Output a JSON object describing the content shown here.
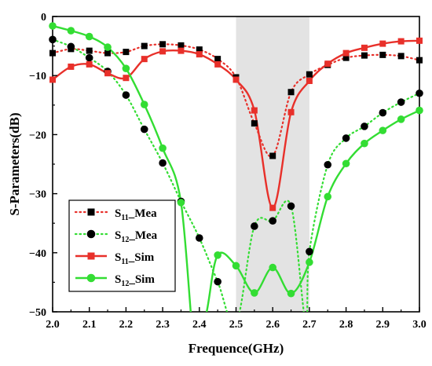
{
  "chart_data": {
    "type": "line",
    "xlabel": "Frequence(GHz)",
    "ylabel": "S-Parameters(dB)",
    "xlim": [
      2.0,
      3.0
    ],
    "ylim": [
      -50,
      0
    ],
    "xticks": [
      "2.0",
      "2.1",
      "2.2",
      "2.3",
      "2.4",
      "2.5",
      "2.6",
      "2.7",
      "2.8",
      "2.9",
      "3.0"
    ],
    "yticks": [
      "0",
      "−10",
      "−20",
      "−30",
      "−40",
      "−50"
    ],
    "highlight_band": [
      2.5,
      2.7
    ],
    "legend_placement": "lower-left",
    "series": [
      {
        "name": "S11_Mea",
        "legend_main": "S",
        "legend_sub": "11",
        "legend_suffix": "_Mea",
        "color": "#000000",
        "line_color": "#e8302a",
        "line_style": "dotted",
        "marker": "square",
        "marker_color": "#000000",
        "x": [
          2.0,
          2.05,
          2.1,
          2.15,
          2.2,
          2.25,
          2.3,
          2.35,
          2.4,
          2.45,
          2.5,
          2.55,
          2.6,
          2.65,
          2.7,
          2.75,
          2.8,
          2.85,
          2.9,
          2.95,
          3.0
        ],
        "y": [
          -6.2,
          -5.5,
          -5.8,
          -6.2,
          -6.0,
          -5.0,
          -4.7,
          -4.9,
          -5.6,
          -7.2,
          -10.3,
          -18.1,
          -23.6,
          -12.8,
          -9.8,
          -8.2,
          -7.0,
          -6.6,
          -6.5,
          -6.7,
          -7.4
        ]
      },
      {
        "name": "S12_Mea",
        "legend_main": "S",
        "legend_sub": "12",
        "legend_suffix": "_Mea",
        "color": "#000000",
        "line_color": "#33dd33",
        "line_style": "dotted",
        "marker": "circle",
        "marker_color": "#000000",
        "x": [
          2.0,
          2.05,
          2.1,
          2.15,
          2.2,
          2.25,
          2.3,
          2.35,
          2.4,
          2.45,
          2.55,
          2.6,
          2.65,
          2.7,
          2.75,
          2.8,
          2.85,
          2.9,
          2.95,
          3.0
        ],
        "y": [
          -3.9,
          -5.1,
          -7.0,
          -9.3,
          -13.3,
          -19.1,
          -24.8,
          -31.3,
          -37.5,
          -44.9,
          -35.5,
          -34.6,
          -32.1,
          -39.8,
          -25.1,
          -20.6,
          -18.6,
          -16.3,
          -14.5,
          -13.0
        ]
      },
      {
        "name": "S11_Sim",
        "legend_main": "S",
        "legend_sub": "11",
        "legend_suffix": "_Sim",
        "color": "#e8302a",
        "line_color": "#e8302a",
        "line_style": "solid",
        "marker": "square",
        "marker_color": "#e8302a",
        "x": [
          2.0,
          2.05,
          2.1,
          2.15,
          2.2,
          2.25,
          2.3,
          2.35,
          2.4,
          2.45,
          2.5,
          2.55,
          2.6,
          2.65,
          2.7,
          2.75,
          2.8,
          2.85,
          2.9,
          2.95,
          3.0
        ],
        "y": [
          -10.7,
          -8.5,
          -8.1,
          -9.6,
          -10.4,
          -7.2,
          -5.9,
          -5.8,
          -6.4,
          -8.1,
          -10.7,
          -15.9,
          -32.4,
          -16.2,
          -10.9,
          -8.0,
          -6.2,
          -5.3,
          -4.6,
          -4.2,
          -4.1
        ]
      },
      {
        "name": "S12_Sim",
        "legend_main": "S",
        "legend_sub": "12",
        "legend_suffix": "_Sim",
        "color": "#33dd33",
        "line_color": "#33dd33",
        "line_style": "solid",
        "marker": "circle",
        "marker_color": "#33dd33",
        "x": [
          2.0,
          2.05,
          2.1,
          2.15,
          2.2,
          2.25,
          2.3,
          2.35,
          2.45,
          2.5,
          2.55,
          2.6,
          2.65,
          2.7,
          2.75,
          2.8,
          2.85,
          2.9,
          2.95,
          3.0
        ],
        "y": [
          -1.6,
          -2.4,
          -3.4,
          -5.2,
          -8.8,
          -14.9,
          -22.3,
          -31.5,
          -40.4,
          -42.2,
          -46.8,
          -42.5,
          -46.9,
          -41.6,
          -30.5,
          -24.9,
          -21.5,
          -19.3,
          -17.4,
          -15.9
        ]
      }
    ]
  }
}
